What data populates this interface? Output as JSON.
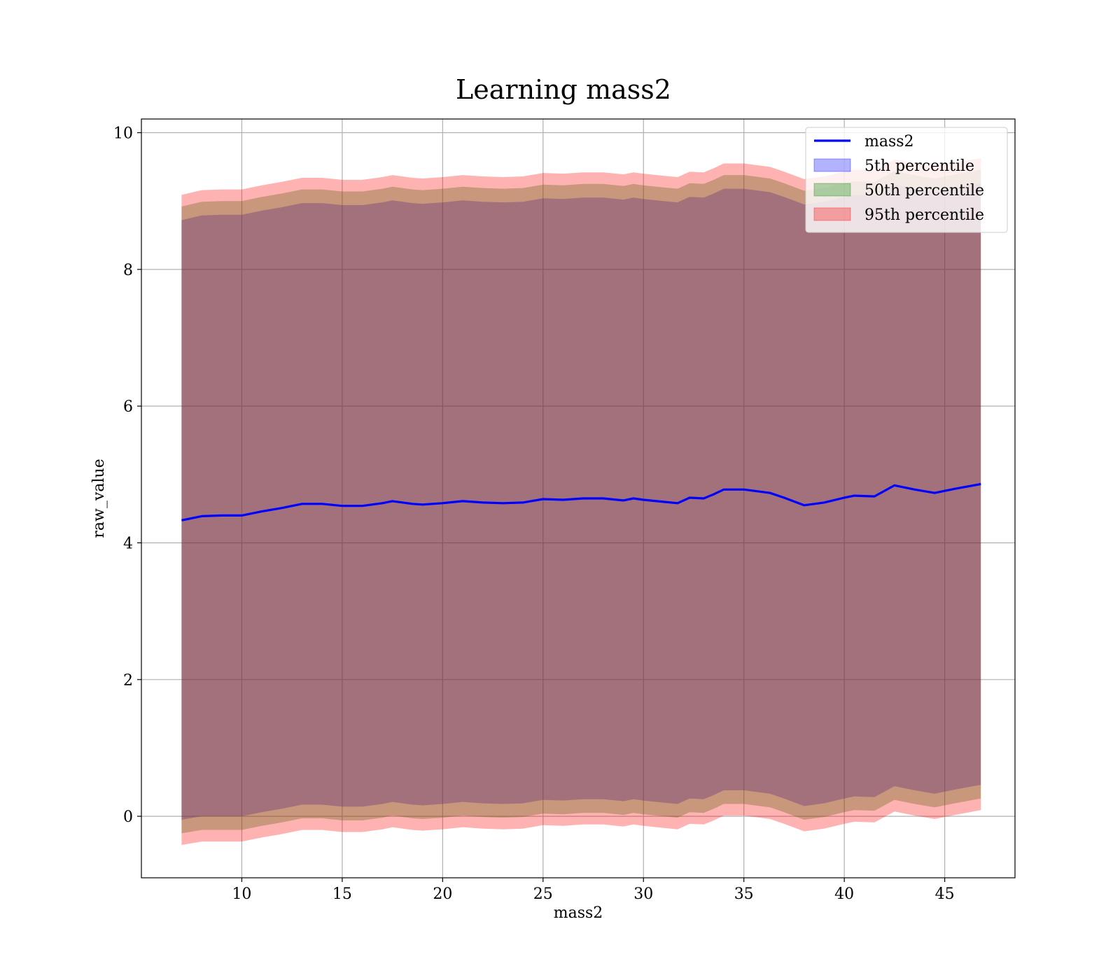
{
  "chart_data": {
    "type": "area",
    "title": "Learning mass2",
    "xlabel": "mass2",
    "ylabel": "raw_value",
    "xlim": [
      5,
      48.5
    ],
    "ylim": [
      -0.9,
      10.2
    ],
    "xticks": [
      10,
      15,
      20,
      25,
      30,
      35,
      40,
      45
    ],
    "yticks": [
      0,
      2,
      4,
      6,
      8,
      10
    ],
    "grid": true,
    "legend_position": "top-right",
    "x": [
      7.0,
      8.0,
      9.0,
      10.0,
      11.0,
      12.0,
      13.0,
      14.0,
      15.0,
      16.0,
      17.0,
      17.5,
      18.5,
      19.0,
      20.0,
      21.0,
      22.0,
      23.0,
      24.0,
      25.0,
      26.0,
      27.0,
      28.0,
      29.0,
      29.5,
      30.0,
      31.0,
      31.7,
      32.3,
      33.0,
      33.5,
      34.0,
      35.0,
      36.3,
      37.0,
      38.0,
      39.0,
      40.0,
      40.5,
      41.5,
      42.5,
      43.5,
      44.5,
      45.5,
      46.8
    ],
    "series": [
      {
        "name": "mass2",
        "kind": "line",
        "color": "#0000ff",
        "values": [
          4.33,
          4.39,
          4.4,
          4.4,
          4.46,
          4.51,
          4.57,
          4.57,
          4.54,
          4.54,
          4.58,
          4.61,
          4.57,
          4.56,
          4.58,
          4.61,
          4.59,
          4.58,
          4.59,
          4.64,
          4.63,
          4.65,
          4.65,
          4.62,
          4.65,
          4.63,
          4.6,
          4.58,
          4.66,
          4.65,
          4.71,
          4.78,
          4.78,
          4.73,
          4.66,
          4.55,
          4.59,
          4.66,
          4.69,
          4.68,
          4.84,
          4.78,
          4.73,
          4.79,
          4.86
        ]
      },
      {
        "name": "5th percentile",
        "kind": "band",
        "color": "#0000ff",
        "lower": [
          -0.05,
          0.0,
          0.0,
          0.0,
          0.06,
          0.11,
          0.17,
          0.17,
          0.14,
          0.14,
          0.18,
          0.21,
          0.17,
          0.16,
          0.18,
          0.21,
          0.19,
          0.18,
          0.19,
          0.24,
          0.23,
          0.25,
          0.25,
          0.22,
          0.25,
          0.23,
          0.2,
          0.18,
          0.26,
          0.25,
          0.31,
          0.38,
          0.38,
          0.33,
          0.26,
          0.15,
          0.19,
          0.26,
          0.29,
          0.28,
          0.44,
          0.38,
          0.33,
          0.39,
          0.46
        ],
        "upper": [
          8.72,
          8.79,
          8.8,
          8.8,
          8.86,
          8.91,
          8.97,
          8.97,
          8.94,
          8.94,
          8.98,
          9.01,
          8.97,
          8.96,
          8.98,
          9.01,
          8.99,
          8.98,
          8.99,
          9.04,
          9.03,
          9.05,
          9.05,
          9.02,
          9.05,
          9.03,
          9.0,
          8.98,
          9.06,
          9.05,
          9.11,
          9.18,
          9.18,
          9.13,
          9.06,
          8.95,
          8.99,
          9.06,
          9.09,
          9.08,
          9.24,
          9.18,
          9.13,
          9.19,
          9.26
        ]
      },
      {
        "name": "50th percentile",
        "kind": "band",
        "color": "#008000",
        "lower": [
          -0.25,
          -0.2,
          -0.2,
          -0.2,
          -0.14,
          -0.09,
          -0.03,
          -0.03,
          -0.06,
          -0.06,
          -0.02,
          0.01,
          -0.03,
          -0.04,
          -0.02,
          0.01,
          -0.01,
          -0.02,
          -0.01,
          0.04,
          0.03,
          0.05,
          0.05,
          0.02,
          0.05,
          0.03,
          0.0,
          -0.02,
          0.06,
          0.05,
          0.11,
          0.18,
          0.18,
          0.13,
          0.06,
          -0.05,
          -0.01,
          0.06,
          0.09,
          0.08,
          0.24,
          0.18,
          0.13,
          0.19,
          0.26
        ],
        "upper": [
          8.92,
          8.99,
          9.0,
          9.0,
          9.06,
          9.11,
          9.17,
          9.17,
          9.14,
          9.14,
          9.18,
          9.21,
          9.17,
          9.16,
          9.18,
          9.21,
          9.19,
          9.18,
          9.19,
          9.24,
          9.23,
          9.25,
          9.25,
          9.22,
          9.25,
          9.23,
          9.2,
          9.18,
          9.26,
          9.25,
          9.31,
          9.38,
          9.38,
          9.33,
          9.26,
          9.15,
          9.19,
          9.26,
          9.29,
          9.28,
          9.44,
          9.38,
          9.33,
          9.39,
          9.46
        ]
      },
      {
        "name": "95th percentile",
        "kind": "band",
        "color": "#ff0000",
        "lower": [
          -0.42,
          -0.37,
          -0.37,
          -0.37,
          -0.31,
          -0.26,
          -0.2,
          -0.2,
          -0.23,
          -0.23,
          -0.19,
          -0.16,
          -0.2,
          -0.21,
          -0.19,
          -0.16,
          -0.18,
          -0.19,
          -0.18,
          -0.13,
          -0.14,
          -0.12,
          -0.12,
          -0.15,
          -0.12,
          -0.14,
          -0.17,
          -0.19,
          -0.11,
          -0.12,
          -0.06,
          0.01,
          0.01,
          -0.04,
          -0.11,
          -0.22,
          -0.18,
          -0.11,
          -0.08,
          -0.09,
          0.07,
          0.01,
          -0.04,
          0.02,
          0.09
        ],
        "upper": [
          9.09,
          9.16,
          9.17,
          9.17,
          9.23,
          9.28,
          9.34,
          9.34,
          9.31,
          9.31,
          9.35,
          9.38,
          9.34,
          9.33,
          9.35,
          9.38,
          9.36,
          9.35,
          9.36,
          9.41,
          9.4,
          9.42,
          9.42,
          9.39,
          9.42,
          9.4,
          9.37,
          9.35,
          9.43,
          9.42,
          9.48,
          9.55,
          9.55,
          9.5,
          9.43,
          9.32,
          9.36,
          9.43,
          9.46,
          9.45,
          9.61,
          9.55,
          9.5,
          9.56,
          9.63
        ]
      }
    ]
  }
}
